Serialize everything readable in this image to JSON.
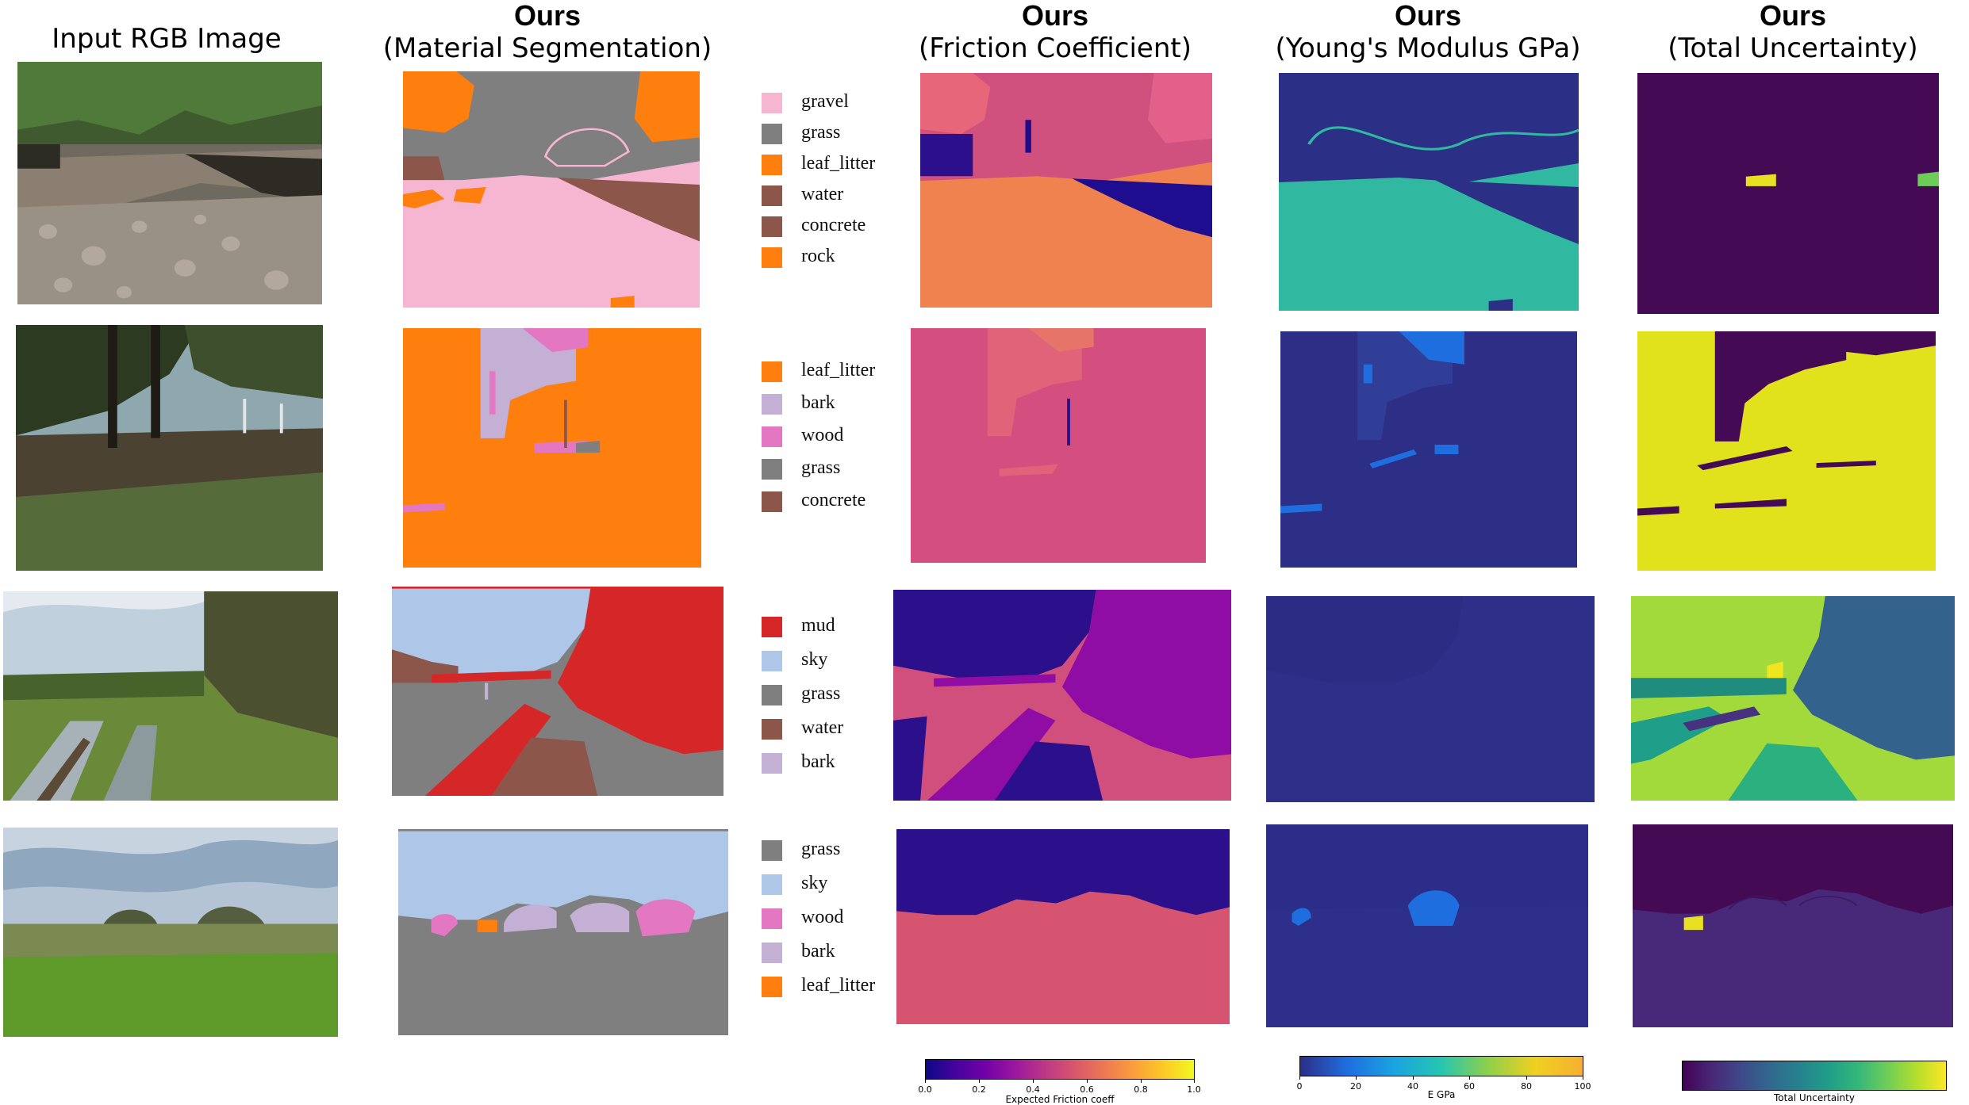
{
  "headers": {
    "input": "Input RGB Image",
    "seg": {
      "bold": "Ours",
      "sub": "(Material Segmentation)"
    },
    "friction": {
      "bold": "Ours",
      "sub": "(Friction Coefficient)"
    },
    "young": {
      "bold": "Ours",
      "sub": "(Young's Modulus GPa)"
    },
    "uncert": {
      "bold": "Ours",
      "sub": "(Total Uncertainty)"
    }
  },
  "colors": {
    "gravel": "#f6b6d2",
    "grass": "#7f7f7f",
    "leaf_litter": "#ff7f0e",
    "water": "#8c564b",
    "concrete": "#8c564b",
    "rock": "#ff7f0e",
    "bark": "#c5b0d5",
    "wood": "#e377c2",
    "mud": "#d62728",
    "sky": "#aec7e8"
  },
  "legends": [
    {
      "items": [
        {
          "label": "gravel",
          "color": "#f6b6d2"
        },
        {
          "label": "grass",
          "color": "#7f7f7f"
        },
        {
          "label": "leaf_litter",
          "color": "#ff7f0e"
        },
        {
          "label": "water",
          "color": "#8c564b"
        },
        {
          "label": "concrete",
          "color": "#8c564b"
        },
        {
          "label": "rock",
          "color": "#ff7f0e"
        }
      ]
    },
    {
      "items": [
        {
          "label": "leaf_litter",
          "color": "#ff7f0e"
        },
        {
          "label": "bark",
          "color": "#c5b0d5"
        },
        {
          "label": "wood",
          "color": "#e377c2"
        },
        {
          "label": "grass",
          "color": "#7f7f7f"
        },
        {
          "label": "concrete",
          "color": "#8c564b"
        }
      ]
    },
    {
      "items": [
        {
          "label": "mud",
          "color": "#d62728"
        },
        {
          "label": "sky",
          "color": "#aec7e8"
        },
        {
          "label": "grass",
          "color": "#7f7f7f"
        },
        {
          "label": "water",
          "color": "#8c564b"
        },
        {
          "label": "bark",
          "color": "#c5b0d5"
        }
      ]
    },
    {
      "items": [
        {
          "label": "grass",
          "color": "#7f7f7f"
        },
        {
          "label": "sky",
          "color": "#aec7e8"
        },
        {
          "label": "wood",
          "color": "#e377c2"
        },
        {
          "label": "bark",
          "color": "#c5b0d5"
        },
        {
          "label": "leaf_litter",
          "color": "#ff7f0e"
        }
      ]
    }
  ],
  "colorbars": {
    "friction": {
      "label": "Expected Friction coeff",
      "ticks": [
        "0.0",
        "0.2",
        "0.4",
        "0.6",
        "0.8",
        "1.0"
      ],
      "colormap": "plasma"
    },
    "young": {
      "label": "E GPa",
      "ticks": [
        "0",
        "20",
        "40",
        "60",
        "80",
        "100"
      ],
      "colormap": "jet"
    },
    "uncert": {
      "label": "Total Uncertainty",
      "ticks": [],
      "colormap": "viridis"
    }
  }
}
